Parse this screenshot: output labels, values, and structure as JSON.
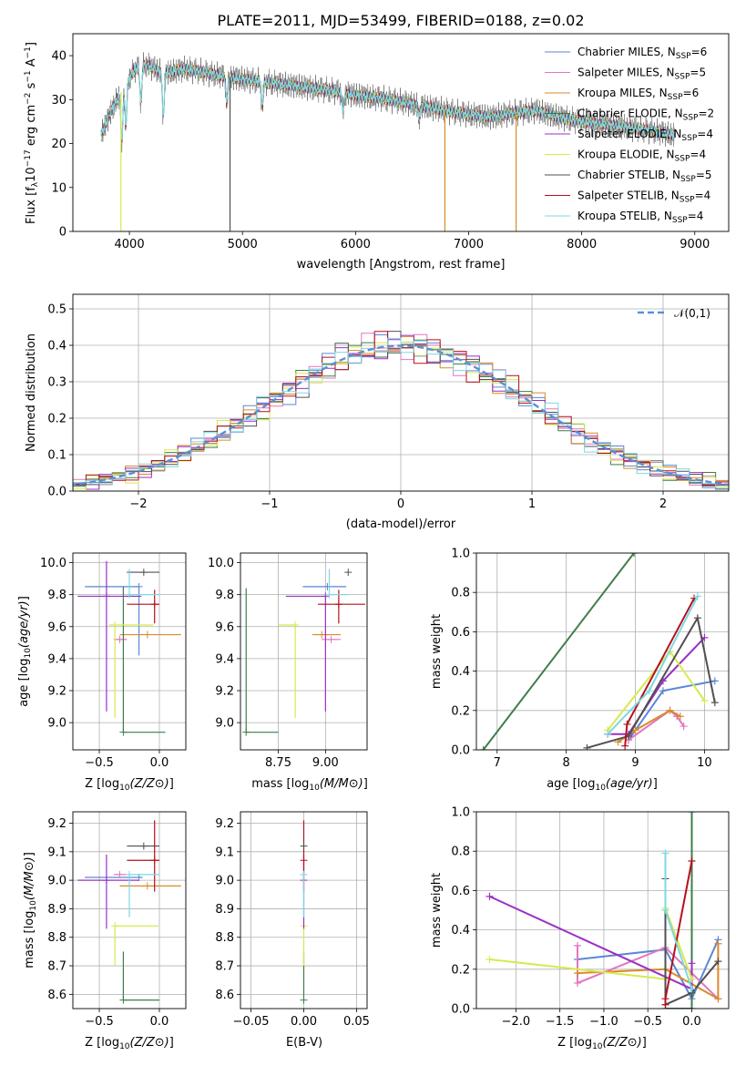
{
  "figure": {
    "title": "PLATE=2011, MJD=53499, FIBERID=0188, z=0.02"
  },
  "model_colors": [
    "#5b86d6",
    "#e077be",
    "#d98a2b",
    "#3f7d4b",
    "#9b2fc4",
    "#d6ea4b",
    "#505050",
    "#b5101c",
    "#7dd8e2"
  ],
  "chart_data": [
    {
      "id": "spectrum",
      "type": "line",
      "xlabel": "wavelength [Angstrom, rest frame]",
      "ylabel": "Flux [f_λ 10^-17 erg cm^-2 s^-1 A^-1]",
      "xlim": [
        3500,
        9300
      ],
      "ylim": [
        0,
        45
      ],
      "xticks": [
        4000,
        5000,
        6000,
        7000,
        8000,
        9000
      ],
      "yticks": [
        0,
        10,
        20,
        30,
        40
      ],
      "grid": false,
      "legend_position": "top-right",
      "series": [
        {
          "name": "Chabrier MILES, N_SSP=6"
        },
        {
          "name": "Salpeter MILES, N_SSP=5"
        },
        {
          "name": "Kroupa MILES, N_SSP=6"
        },
        {
          "name": "Chabrier ELODIE, N_SSP=2"
        },
        {
          "name": "Salpeter ELODIE, N_SSP=4"
        },
        {
          "name": "Kroupa ELODIE, N_SSP=4"
        },
        {
          "name": "Chabrier STELIB, N_SSP=5"
        },
        {
          "name": "Salpeter STELIB, N_SSP=4"
        },
        {
          "name": "Kroupa STELIB, N_SSP=4"
        }
      ],
      "continuum": {
        "x": [
          3750,
          3850,
          3950,
          4050,
          4150,
          4300,
          4500,
          4700,
          4900,
          5200,
          5500,
          5800,
          6000,
          6300,
          6600,
          6900,
          7200,
          7400,
          7600,
          7800,
          8000,
          8300,
          8600,
          8800
        ],
        "y": [
          22,
          28,
          33,
          37,
          38,
          36,
          37,
          36,
          35,
          34,
          33,
          32,
          31,
          30,
          28.5,
          27,
          26,
          27,
          27.5,
          26,
          25,
          24,
          23,
          22
        ]
      },
      "absorption_features": [
        {
          "x": 3933,
          "depth": 12
        },
        {
          "x": 3969,
          "depth": 10
        },
        {
          "x": 4101,
          "depth": 8
        },
        {
          "x": 4300,
          "depth": 10
        },
        {
          "x": 4861,
          "depth": 6
        },
        {
          "x": 5175,
          "depth": 6
        },
        {
          "x": 5890,
          "depth": 4
        },
        {
          "x": 6563,
          "depth": 3
        }
      ],
      "spikes": [
        {
          "x": 3925,
          "color": "#d6ea4b",
          "y": 0
        },
        {
          "x": 4890,
          "color": "#505050",
          "y": 0
        },
        {
          "x": 6790,
          "color": "#d98a2b",
          "y": 0
        },
        {
          "x": 7420,
          "color": "#d98a2b",
          "y": 0
        }
      ]
    },
    {
      "id": "residuals",
      "type": "histogram",
      "xlabel": "(data-model)/error",
      "ylabel": "Normed distribution",
      "xlim": [
        -2.5,
        2.5
      ],
      "ylim": [
        0,
        0.54
      ],
      "xticks": [
        -2,
        -1,
        0,
        1,
        2
      ],
      "yticks": [
        0.0,
        0.1,
        0.2,
        0.3,
        0.4,
        0.5
      ],
      "grid": true,
      "bin_width": 0.1,
      "legend_position": "top-right",
      "reference_curve": {
        "name": "𝒩(0,1)",
        "color": "#5b8fd6",
        "mean": 0,
        "sigma": 1
      }
    },
    {
      "id": "age_vs_Z",
      "type": "scatter",
      "xlabel": "Z [log10(Z/Z⊙)]",
      "ylabel": "age  [log10(age/yr)]",
      "xlim": [
        -0.72,
        0.22
      ],
      "ylim": [
        8.83,
        10.06
      ],
      "xticks": [
        -0.5,
        0.0
      ],
      "xticklabels": [
        "−0.5",
        "0.0"
      ],
      "yticks": [
        9.0,
        9.2,
        9.4,
        9.6,
        9.8,
        10.0
      ],
      "grid": true,
      "points": [
        {
          "model": 0,
          "x": -0.17,
          "xerr": [
            0.45,
            0
          ],
          "y": 9.85,
          "yerr": [
            0.43,
            0.0
          ]
        },
        {
          "model": 1,
          "x": -0.33,
          "xerr": [
            0.05,
            0.06
          ],
          "y": 9.52,
          "yerr": [
            0.0,
            0.0
          ]
        },
        {
          "model": 2,
          "x": -0.1,
          "xerr": [
            0.23,
            0.28
          ],
          "y": 9.55,
          "yerr": [
            0.0,
            0.0
          ]
        },
        {
          "model": 3,
          "x": -0.3,
          "xerr": [
            0.0,
            0.35
          ],
          "y": 8.94,
          "yerr": [
            0.0,
            0.91
          ]
        },
        {
          "model": 4,
          "x": -0.44,
          "xerr": [
            0.24,
            0.29
          ],
          "y": 9.79,
          "yerr": [
            0.72,
            0.22
          ]
        },
        {
          "model": 5,
          "x": -0.37,
          "xerr": [
            0.05,
            0.32
          ],
          "y": 9.61,
          "yerr": [
            0.58,
            0.0
          ]
        },
        {
          "model": 6,
          "x": -0.13,
          "xerr": [
            0.14,
            0.13
          ],
          "y": 9.94,
          "yerr": [
            0.0,
            0.0
          ]
        },
        {
          "model": 7,
          "x": -0.04,
          "xerr": [
            0.23,
            0.04
          ],
          "y": 9.74,
          "yerr": [
            0.12,
            0.09
          ]
        },
        {
          "model": 8,
          "x": -0.25,
          "xerr": [
            0.0,
            0.25
          ],
          "y": 9.8,
          "yerr": [
            0.0,
            0.16
          ]
        }
      ]
    },
    {
      "id": "age_vs_mass",
      "type": "scatter",
      "xlabel": "mass [log10(M/M⊙)]",
      "xlim": [
        8.55,
        9.22
      ],
      "ylim": [
        8.83,
        10.06
      ],
      "xticks": [
        8.75,
        9.0
      ],
      "xticklabels": [
        "8.75",
        "9.00"
      ],
      "yticks": [
        9.0,
        9.2,
        9.4,
        9.6,
        9.8,
        10.0
      ],
      "grid": true,
      "points": [
        {
          "model": 0,
          "x": 9.01,
          "xerr": [
            0.13,
            0.1
          ],
          "y": 9.85,
          "yerr": [
            0.0,
            0.0
          ]
        },
        {
          "model": 1,
          "x": 9.03,
          "xerr": [
            0.05,
            0.05
          ],
          "y": 9.52,
          "yerr": [
            0.0,
            0.0
          ]
        },
        {
          "model": 2,
          "x": 8.98,
          "xerr": [
            0.05,
            0.1
          ],
          "y": 9.55,
          "yerr": [
            0.0,
            0.0
          ]
        },
        {
          "model": 3,
          "x": 8.58,
          "xerr": [
            0.0,
            0.17
          ],
          "y": 8.94,
          "yerr": [
            0.0,
            0.9
          ]
        },
        {
          "model": 4,
          "x": 9.0,
          "xerr": [
            0.21,
            0.0
          ],
          "y": 9.79,
          "yerr": [
            0.72,
            0.0
          ]
        },
        {
          "model": 5,
          "x": 8.84,
          "xerr": [
            0.09,
            0.0
          ],
          "y": 9.61,
          "yerr": [
            0.58,
            0.0
          ]
        },
        {
          "model": 6,
          "x": 9.12,
          "xerr": [
            0.0,
            0.0
          ],
          "y": 9.94,
          "yerr": [
            0.0,
            0.0
          ]
        },
        {
          "model": 7,
          "x": 9.07,
          "xerr": [
            0.11,
            0.14
          ],
          "y": 9.74,
          "yerr": [
            0.12,
            0.09
          ]
        },
        {
          "model": 8,
          "x": 9.02,
          "xerr": [
            0.0,
            0.1
          ],
          "y": 9.8,
          "yerr": [
            0.0,
            0.16
          ]
        }
      ]
    },
    {
      "id": "weight_vs_age",
      "type": "line",
      "ylabel": "mass weight",
      "xlabel": "age  [log10(age/yr)]",
      "xlim": [
        6.7,
        10.35
      ],
      "ylim": [
        0,
        1.0
      ],
      "xticks": [
        7,
        8,
        9,
        10
      ],
      "yticks": [
        0.0,
        0.2,
        0.4,
        0.6,
        0.8,
        1.0
      ],
      "grid": true,
      "series": [
        {
          "model": 0,
          "x": [
            8.9,
            9.4,
            10.15
          ],
          "y": [
            0.05,
            0.3,
            0.35
          ]
        },
        {
          "model": 1,
          "x": [
            8.9,
            9.5,
            9.6,
            9.7
          ],
          "y": [
            0.05,
            0.2,
            0.17,
            0.12
          ]
        },
        {
          "model": 2,
          "x": [
            8.75,
            9.0,
            9.5,
            9.65
          ],
          "y": [
            0.04,
            0.1,
            0.2,
            0.17
          ]
        },
        {
          "model": 3,
          "x": [
            6.8,
            8.98
          ],
          "y": [
            0.0,
            1.0
          ]
        },
        {
          "model": 4,
          "x": [
            8.6,
            8.9,
            9.4,
            10.0
          ],
          "y": [
            0.08,
            0.08,
            0.35,
            0.57
          ]
        },
        {
          "model": 5,
          "x": [
            8.6,
            9.5,
            10.0
          ],
          "y": [
            0.1,
            0.5,
            0.25
          ]
        },
        {
          "model": 6,
          "x": [
            8.3,
            8.9,
            9.9,
            10.15
          ],
          "y": [
            0.01,
            0.07,
            0.67,
            0.24
          ]
        },
        {
          "model": 7,
          "x": [
            8.85,
            8.88,
            9.85
          ],
          "y": [
            0.02,
            0.13,
            0.77
          ]
        },
        {
          "model": 8,
          "x": [
            8.6,
            9.2,
            9.9
          ],
          "y": [
            0.08,
            0.3,
            0.78
          ]
        }
      ]
    },
    {
      "id": "mass_vs_Z",
      "type": "scatter",
      "xlabel": "Z [log10(Z/Z⊙)]",
      "ylabel": "mass [log10(M/M⊙)]",
      "xlim": [
        -0.72,
        0.22
      ],
      "ylim": [
        8.55,
        9.24
      ],
      "xticks": [
        -0.5,
        0.0
      ],
      "xticklabels": [
        "−0.5",
        "0.0"
      ],
      "yticks": [
        8.6,
        8.7,
        8.8,
        8.9,
        9.0,
        9.1,
        9.2
      ],
      "grid": true,
      "points": [
        {
          "model": 0,
          "x": -0.17,
          "xerr": [
            0.45,
            0.03
          ],
          "y": 9.01,
          "yerr": [
            0.0,
            0.0
          ]
        },
        {
          "model": 1,
          "x": -0.33,
          "xerr": [
            0.05,
            0.06
          ],
          "y": 9.02,
          "yerr": [
            0.0,
            0.0
          ]
        },
        {
          "model": 2,
          "x": -0.1,
          "xerr": [
            0.23,
            0.28
          ],
          "y": 8.98,
          "yerr": [
            0.0,
            0.0
          ]
        },
        {
          "model": 3,
          "x": -0.3,
          "xerr": [
            0.0,
            0.3
          ],
          "y": 8.58,
          "yerr": [
            0.0,
            0.17
          ]
        },
        {
          "model": 4,
          "x": -0.44,
          "xerr": [
            0.24,
            0.27
          ],
          "y": 9.0,
          "yerr": [
            0.17,
            0.09
          ]
        },
        {
          "model": 5,
          "x": -0.37,
          "xerr": [
            0.0,
            0.36
          ],
          "y": 8.84,
          "yerr": [
            0.14,
            0.0
          ]
        },
        {
          "model": 6,
          "x": -0.13,
          "xerr": [
            0.14,
            0.13
          ],
          "y": 9.12,
          "yerr": [
            0.0,
            0.0
          ]
        },
        {
          "model": 7,
          "x": -0.04,
          "xerr": [
            0.23,
            0.04
          ],
          "y": 9.07,
          "yerr": [
            0.11,
            0.14
          ]
        },
        {
          "model": 8,
          "x": -0.25,
          "xerr": [
            0.0,
            0.25
          ],
          "y": 9.02,
          "yerr": [
            0.15,
            0.0
          ]
        }
      ]
    },
    {
      "id": "mass_vs_ebv",
      "type": "scatter",
      "xlabel": "E(B-V)",
      "xlim": [
        -0.06,
        0.06
      ],
      "ylim": [
        8.55,
        9.24
      ],
      "xticks": [
        -0.05,
        0.0,
        0.05
      ],
      "xticklabels": [
        "−0.05",
        "0.00",
        "0.05"
      ],
      "yticks": [
        8.6,
        8.7,
        8.8,
        8.9,
        9.0,
        9.1,
        9.2
      ],
      "grid": true,
      "points": [
        {
          "model": 3,
          "x": 0.0,
          "xerr": [
            0,
            0
          ],
          "y": 8.58,
          "yerr": [
            0.0,
            0.17
          ]
        },
        {
          "model": 5,
          "x": 0.0,
          "xerr": [
            0,
            0
          ],
          "y": 8.84,
          "yerr": [
            0.14,
            0.0
          ]
        },
        {
          "model": 4,
          "x": 0.0,
          "xerr": [
            0,
            0
          ],
          "y": 9.0,
          "yerr": [
            0.17,
            0.09
          ]
        },
        {
          "model": 7,
          "x": 0.0,
          "xerr": [
            0,
            0
          ],
          "y": 9.07,
          "yerr": [
            0.11,
            0.14
          ]
        },
        {
          "model": 6,
          "x": 0.0,
          "xerr": [
            0,
            0
          ],
          "y": 9.12,
          "yerr": [
            0.0,
            0.0
          ]
        },
        {
          "model": 8,
          "x": 0.0,
          "xerr": [
            0,
            0
          ],
          "y": 9.02,
          "yerr": [
            0.15,
            0.0
          ]
        }
      ]
    },
    {
      "id": "weight_vs_Z",
      "type": "line",
      "ylabel": "mass weight",
      "xlabel": "Z [log10(Z/Z⊙)]",
      "xlim": [
        -2.45,
        0.42
      ],
      "ylim": [
        0,
        1.0
      ],
      "xticks": [
        -2.0,
        -1.5,
        -1.0,
        -0.5,
        0.0
      ],
      "xticklabels": [
        "−2.0",
        "−1.5",
        "−1.0",
        "−0.5",
        "0.0"
      ],
      "yticks": [
        0.0,
        0.2,
        0.4,
        0.6,
        0.8,
        1.0
      ],
      "grid": true,
      "series": [
        {
          "model": 0,
          "x": [
            -1.3,
            -0.3,
            0.0,
            0.3
          ],
          "y": [
            0.25,
            0.3,
            0.05,
            0.35
          ]
        },
        {
          "model": 1,
          "x": [
            -1.3,
            -1.3,
            -0.3,
            0.3
          ],
          "y": [
            0.32,
            0.13,
            0.31,
            0.05
          ]
        },
        {
          "model": 2,
          "x": [
            -1.3,
            -0.3,
            0.3,
            0.3
          ],
          "y": [
            0.18,
            0.2,
            0.05,
            0.33
          ]
        },
        {
          "model": 3,
          "x": [
            -0.3,
            0.0,
            0.0
          ],
          "y": [
            0.0,
            0.0,
            1.0
          ]
        },
        {
          "model": 4,
          "x": [
            -2.3,
            0.0,
            0.0
          ],
          "y": [
            0.57,
            0.1,
            0.23
          ]
        },
        {
          "model": 5,
          "x": [
            -2.3,
            -0.3,
            -0.3,
            0.0
          ],
          "y": [
            0.25,
            0.15,
            0.51,
            0.15
          ]
        },
        {
          "model": 6,
          "x": [
            -0.3,
            -0.3,
            0.0,
            0.3
          ],
          "y": [
            0.66,
            0.02,
            0.08,
            0.24
          ]
        },
        {
          "model": 7,
          "x": [
            -0.3,
            -0.3,
            0.0
          ],
          "y": [
            0.02,
            0.05,
            0.75
          ]
        },
        {
          "model": 8,
          "x": [
            -0.3,
            -0.3,
            0.0
          ],
          "y": [
            0.79,
            0.5,
            0.1
          ]
        }
      ]
    }
  ]
}
